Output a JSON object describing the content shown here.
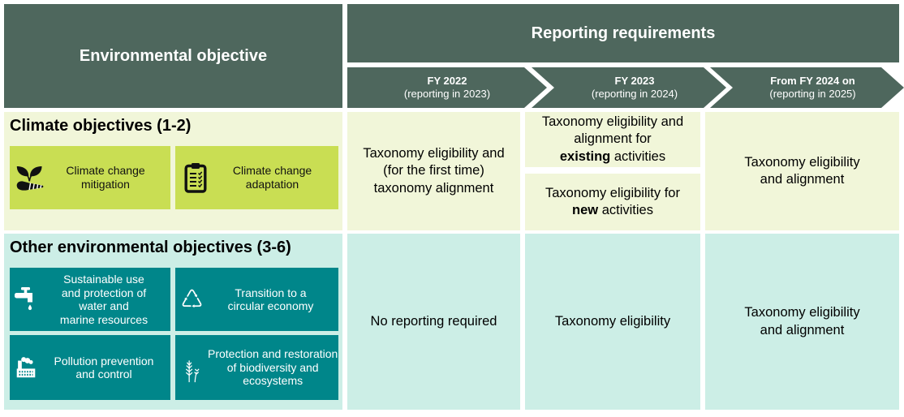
{
  "headers": {
    "environmental_objective": "Environmental objective",
    "reporting_requirements": "Reporting requirements"
  },
  "timeline": {
    "fy2022": {
      "title": "FY 2022",
      "subtitle": "(reporting in 2023)"
    },
    "fy2023": {
      "title": "FY 2023",
      "subtitle": "(reporting in 2024)"
    },
    "fy2024": {
      "title": "From FY 2024 on",
      "subtitle": "(reporting in 2025)"
    }
  },
  "climate": {
    "title": "Climate objectives (1-2)",
    "mitigation_label_lines": [
      "Climate change",
      "mitigation"
    ],
    "adaptation_label_lines": [
      "Climate change",
      "adaptation"
    ],
    "fy2022_lines": [
      "Taxonomy eligibility and",
      "(for the first time)",
      "taxonomy alignment"
    ],
    "fy2023_existing": {
      "lines": [
        "Taxonomy eligibility and",
        "alignment for"
      ],
      "bold": "existing",
      "suffix": " activities"
    },
    "fy2023_new": {
      "line": "Taxonomy eligibility for",
      "bold": "new",
      "suffix": " activities"
    },
    "fy2024_lines": [
      "Taxonomy eligibility",
      "and alignment"
    ]
  },
  "other": {
    "title": "Other environmental objectives (3-6)",
    "water_label_lines": [
      "Sustainable use",
      "and protection of",
      "water and",
      "marine resources"
    ],
    "circular_label_lines": [
      "Transition to a",
      "circular economy"
    ],
    "pollution_label_lines": [
      "Pollution prevention",
      "and control"
    ],
    "biodiversity_label_lines": [
      "Protection and restoration",
      "of biodiversity and",
      "ecosystems"
    ],
    "fy2022": "No reporting required",
    "fy2023": "Taxonomy eligibility",
    "fy2024_lines": [
      "Taxonomy eligibility",
      "and alignment"
    ]
  },
  "colors": {
    "header_green": "#4e675d",
    "row_climate_bg": "#f1f6d9",
    "climate_box_green": "#c9de53",
    "row_other_bg": "#cceee6",
    "other_box_teal": "#00868a",
    "text_light": "#ffffff"
  }
}
